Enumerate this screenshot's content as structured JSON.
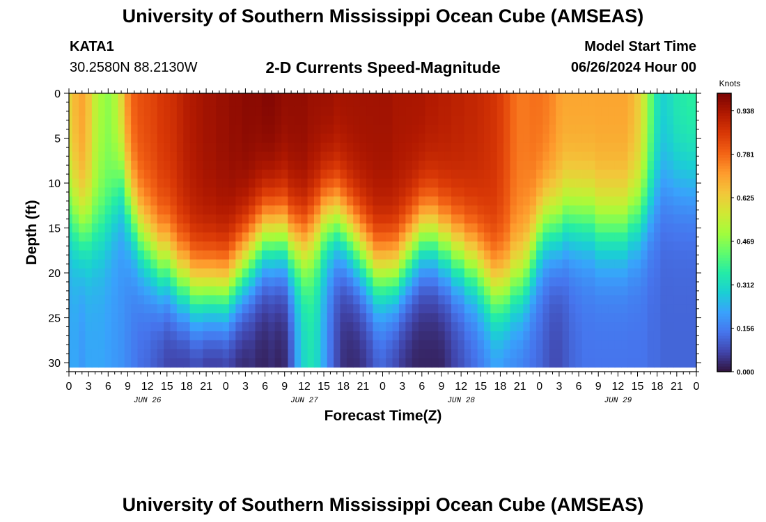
{
  "header": {
    "title": "University of Southern Mississippi Ocean Cube (AMSEAS)",
    "station_id": "KATA1",
    "station_coords": "30.2580N  88.2130W",
    "plot_title": "2-D Currents Speed-Magnitude",
    "model_start_label": "Model Start Time",
    "model_start_value": "06/26/2024 Hour 00"
  },
  "footer": {
    "title": "University of Southern Mississippi Ocean Cube (AMSEAS)"
  },
  "colors": {
    "background": "#ffffff",
    "axis": "#000000",
    "colormap": [
      "#30123b",
      "#4145ab",
      "#4675ed",
      "#39a2fc",
      "#1bcfd4",
      "#24eca6",
      "#61fc6c",
      "#a4fc3b",
      "#d1e834",
      "#f3c63a",
      "#fe9b2d",
      "#f36315",
      "#d93806",
      "#b11901",
      "#7a0403"
    ]
  },
  "chart_data": {
    "type": "heatmap",
    "title": "2-D Currents Speed-Magnitude",
    "xlabel": "Forecast Time(Z)",
    "ylabel": "Depth (ft)",
    "x_range_hours": [
      0,
      96
    ],
    "ylim": [
      0,
      31
    ],
    "y_inverted": true,
    "x_tick_step_hours": 3,
    "x_tick_labels": [
      "0",
      "3",
      "6",
      "9",
      "12",
      "15",
      "18",
      "21",
      "0",
      "3",
      "6",
      "9",
      "12",
      "15",
      "18",
      "21",
      "0",
      "3",
      "6",
      "9",
      "12",
      "15",
      "18",
      "21",
      "0",
      "3",
      "6",
      "9",
      "12",
      "15",
      "18",
      "21",
      "0"
    ],
    "y_ticks": [
      0,
      5,
      10,
      15,
      20,
      25,
      30
    ],
    "y_tick_labels": [
      "0",
      "5",
      "10",
      "15",
      "20",
      "25",
      "30"
    ],
    "date_labels": [
      {
        "label": "JUN 26",
        "hour": 12
      },
      {
        "label": "JUN 27",
        "hour": 36
      },
      {
        "label": "JUN 28",
        "hour": 60
      },
      {
        "label": "JUN 29",
        "hour": 84
      }
    ],
    "colorbar": {
      "title": "Knots",
      "range": [
        0,
        1.0
      ],
      "ticks": [
        0.0,
        0.156,
        0.312,
        0.469,
        0.625,
        0.781,
        0.938
      ],
      "tick_labels": [
        "0.000",
        "0.156",
        "0.312",
        "0.469",
        "0.625",
        "0.781",
        "0.938"
      ]
    },
    "grid": false,
    "field": {
      "hours": [
        0,
        1,
        2,
        3,
        4,
        5,
        6,
        7,
        8,
        9,
        10,
        11,
        12,
        13,
        14,
        15,
        16,
        17,
        18,
        19,
        20,
        21,
        22,
        23,
        24,
        25,
        26,
        27,
        28,
        29,
        30,
        31,
        32,
        33,
        34,
        35,
        36,
        37,
        38,
        39,
        40,
        41,
        42,
        43,
        44,
        45,
        46,
        47,
        48,
        49,
        50,
        51,
        52,
        53,
        54,
        55,
        56,
        57,
        58,
        59,
        60,
        61,
        62,
        63,
        64,
        65,
        66,
        67,
        68,
        69,
        70,
        71,
        72,
        73,
        74,
        75,
        76,
        77,
        78,
        79,
        80,
        81,
        82,
        83,
        84,
        85,
        86,
        87,
        88,
        89,
        90,
        91,
        92,
        93,
        94,
        95,
        96
      ],
      "mixed_layer_depth_ft": [
        13,
        14,
        15,
        15,
        15,
        15,
        14,
        12,
        10,
        12,
        14,
        16,
        17,
        18,
        19,
        19,
        20,
        21,
        21,
        22,
        22,
        22,
        22,
        22,
        22,
        21,
        20,
        19,
        18,
        17,
        16,
        16,
        16,
        16,
        17,
        17,
        17,
        16,
        15,
        14,
        14,
        14,
        15,
        16,
        17,
        18,
        19,
        20,
        20,
        20,
        20,
        19,
        18,
        17,
        16,
        16,
        16,
        17,
        17,
        18,
        18,
        19,
        19,
        20,
        21,
        22,
        22,
        22,
        21,
        21,
        20,
        18,
        16,
        15,
        15,
        15,
        14,
        14,
        14,
        14,
        14,
        15,
        15,
        15,
        15,
        15,
        14,
        14,
        13,
        12,
        11,
        10,
        10,
        10,
        10,
        10,
        10
      ],
      "surface_speed_kn": [
        0.62,
        0.67,
        0.7,
        0.65,
        0.55,
        0.5,
        0.48,
        0.52,
        0.62,
        0.74,
        0.8,
        0.82,
        0.83,
        0.84,
        0.86,
        0.87,
        0.88,
        0.9,
        0.92,
        0.93,
        0.94,
        0.95,
        0.95,
        0.96,
        0.96,
        0.97,
        0.97,
        0.98,
        0.98,
        0.98,
        0.99,
        0.99,
        0.98,
        0.97,
        0.97,
        0.97,
        0.97,
        0.96,
        0.96,
        0.96,
        0.96,
        0.95,
        0.95,
        0.95,
        0.95,
        0.95,
        0.95,
        0.95,
        0.95,
        0.95,
        0.94,
        0.94,
        0.94,
        0.94,
        0.94,
        0.93,
        0.93,
        0.92,
        0.92,
        0.91,
        0.91,
        0.9,
        0.9,
        0.89,
        0.88,
        0.87,
        0.85,
        0.82,
        0.78,
        0.76,
        0.76,
        0.77,
        0.77,
        0.76,
        0.74,
        0.71,
        0.7,
        0.7,
        0.7,
        0.7,
        0.7,
        0.7,
        0.7,
        0.7,
        0.7,
        0.7,
        0.68,
        0.64,
        0.56,
        0.44,
        0.34,
        0.3,
        0.32,
        0.35,
        0.36,
        0.37,
        0.37
      ],
      "bottom_speed_kn": [
        0.22,
        0.22,
        0.2,
        0.22,
        0.22,
        0.22,
        0.21,
        0.2,
        0.19,
        0.17,
        0.15,
        0.13,
        0.12,
        0.1,
        0.08,
        0.06,
        0.05,
        0.04,
        0.04,
        0.04,
        0.04,
        0.02,
        0.02,
        0.02,
        0.03,
        0.03,
        0.02,
        0.02,
        0.03,
        0.02,
        0.02,
        0.03,
        0.02,
        0.03,
        0.1,
        0.22,
        0.3,
        0.33,
        0.3,
        0.22,
        0.14,
        0.08,
        0.04,
        0.03,
        0.03,
        0.04,
        0.06,
        0.09,
        0.1,
        0.08,
        0.06,
        0.04,
        0.03,
        0.02,
        0.02,
        0.02,
        0.02,
        0.02,
        0.04,
        0.06,
        0.08,
        0.1,
        0.12,
        0.14,
        0.16,
        0.18,
        0.18,
        0.16,
        0.16,
        0.15,
        0.14,
        0.13,
        0.12,
        0.1,
        0.08,
        0.08,
        0.1,
        0.12,
        0.13,
        0.14,
        0.14,
        0.14,
        0.14,
        0.14,
        0.14,
        0.14,
        0.14,
        0.14,
        0.14,
        0.13,
        0.13,
        0.12,
        0.12,
        0.12,
        0.12,
        0.12,
        0.12
      ]
    }
  }
}
